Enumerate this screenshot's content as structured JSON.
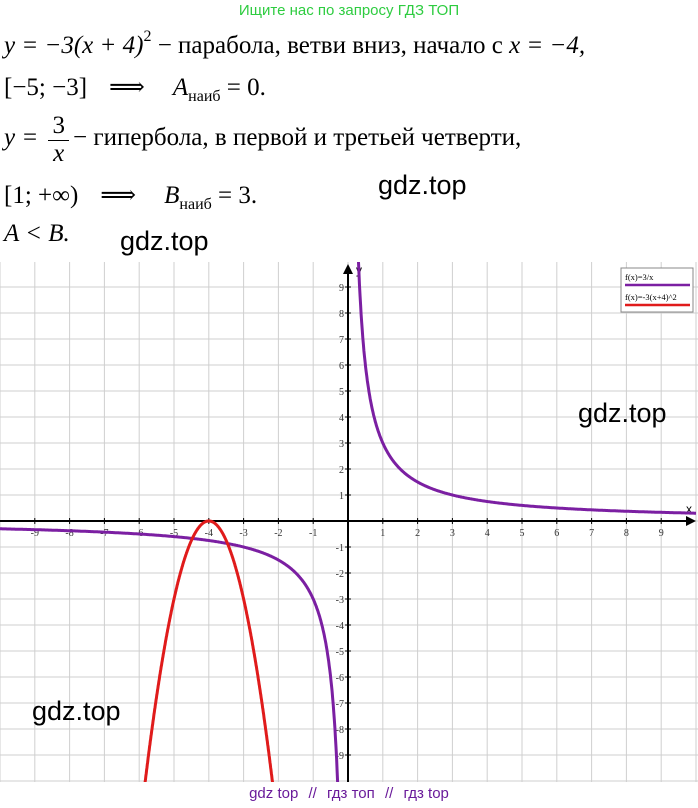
{
  "banner": "Ищите нас по запросу ГДЗ ТОП",
  "text": {
    "l1_eq": "y = −3(x + 4)",
    "l1_pow": "2",
    "l1_rest": " − парабола, ветви вниз, начало с ",
    "l1_cond": "x = −4,",
    "l2_interval": "[−5; −3]",
    "l2_arrow": "⟹",
    "l2_A": "A",
    "l2_sub": "наиб",
    "l2_val": " = 0.",
    "l3_y": "y =",
    "l3_num": "3",
    "l3_den": "x",
    "l3_rest": "− гипербола, в первой и третьей четверти,",
    "l4_interval": "[1; +∞)",
    "l4_arrow": "⟹",
    "l4_B": "B",
    "l4_sub": "наиб",
    "l4_val": " = 3.",
    "l5": "A < B."
  },
  "watermarks": [
    "gdz.top",
    "gdz.top",
    "gdz.top",
    "gdz.top"
  ],
  "footer": [
    "gdz top",
    "//",
    "гдз топ",
    "//",
    "гдз top"
  ],
  "chart_data": {
    "type": "line",
    "xlabel": "x",
    "ylabel": "y",
    "xlim": [
      -10,
      10
    ],
    "ylim": [
      -10,
      10
    ],
    "xticks": [
      -9,
      -8,
      -7,
      -6,
      -5,
      -4,
      -3,
      -2,
      -1,
      1,
      2,
      3,
      4,
      5,
      6,
      7,
      8,
      9
    ],
    "yticks": [
      9,
      8,
      7,
      6,
      5,
      4,
      3,
      2,
      1,
      -1,
      -2,
      -3,
      -4,
      -5,
      -6,
      -7,
      -8,
      -9
    ],
    "grid": true,
    "legend_position": "top-right",
    "series": [
      {
        "name": "f(x)=3/x",
        "color": "#7b1fa2",
        "formula": "3/x"
      },
      {
        "name": "f(x)=-3(x+4)^2",
        "color": "#e01b1b",
        "formula": "-3(x+4)^2"
      }
    ]
  }
}
